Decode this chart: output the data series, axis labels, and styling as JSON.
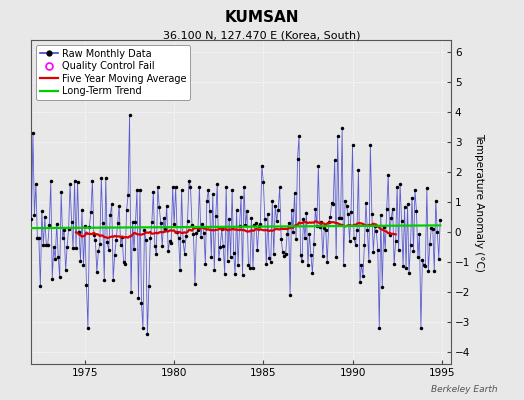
{
  "title": "KUMSAN",
  "subtitle": "36.100 N, 127.470 E (Korea, South)",
  "ylabel": "Temperature Anomaly (°C)",
  "watermark": "Berkeley Earth",
  "xlim": [
    1972.0,
    1995.5
  ],
  "ylim": [
    -4.4,
    6.4
  ],
  "yticks": [
    -4,
    -3,
    -2,
    -1,
    0,
    1,
    2,
    3,
    4,
    5,
    6
  ],
  "xticks": [
    1975,
    1980,
    1985,
    1990,
    1995
  ],
  "bg_color": "#e8e8e8",
  "plot_bg_color": "#e8e8e8",
  "raw_color": "#4444cc",
  "raw_marker_color": "#000000",
  "ma_color": "#dd0000",
  "trend_color": "#00cc00",
  "qc_color": "#ff00ff",
  "seed": 42,
  "n_months": 276,
  "start_year": 1972.0,
  "figwidth": 5.24,
  "figheight": 4.0,
  "dpi": 100
}
